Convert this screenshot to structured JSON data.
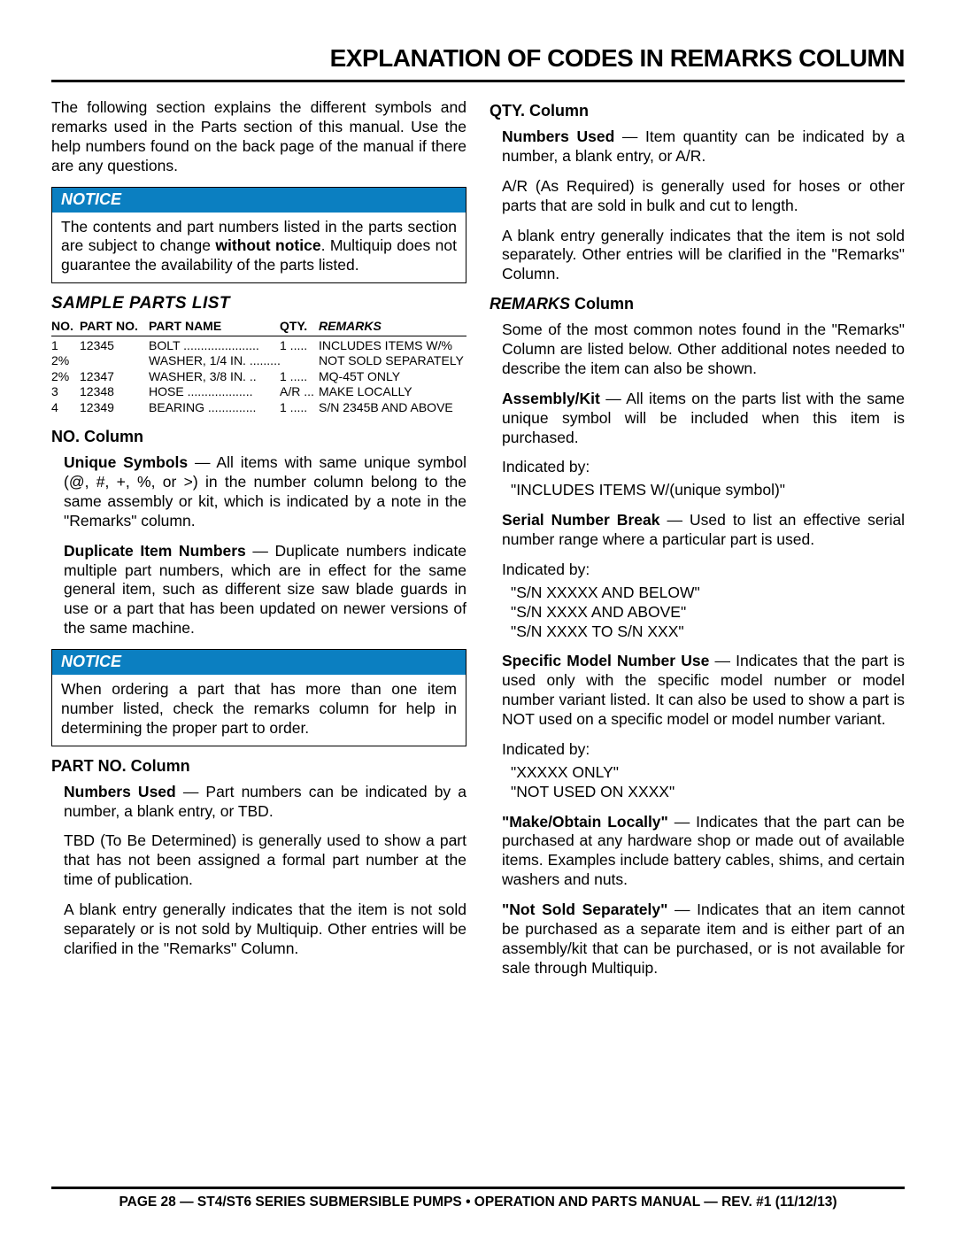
{
  "title": "EXPLANATION OF CODES IN REMARKS COLUMN",
  "intro": "The following section explains the different symbols and remarks used in the Parts section of this manual. Use the help numbers found on the back page of the manual if there are any questions.",
  "notice1_hdr": "NOTICE",
  "notice1_body_a": "The contents and part numbers listed in the parts section are subject to change ",
  "notice1_body_b": "without notice",
  "notice1_body_c": ". Multiquip does not guarantee the availability of the parts listed.",
  "sample_title": "SAMPLE PARTS LIST",
  "sample": {
    "h_no": "NO.",
    "h_pn": "PART NO.",
    "h_name": "PART NAME",
    "h_qty": "QTY.",
    "h_rem": "REMARKS",
    "rows": [
      {
        "no": "1",
        "pn": "12345",
        "name": "BOLT ......................",
        "qty": "1 .....",
        "rem": "INCLUDES ITEMS W/%"
      },
      {
        "no": "2%",
        "pn": "",
        "name": "WASHER, 1/4 IN. .........",
        "qty": "",
        "rem": "NOT SOLD SEPARATELY"
      },
      {
        "no": "2%",
        "pn": "12347",
        "name": "WASHER, 3/8 IN. ..",
        "qty": "1 .....",
        "rem": "MQ-45T ONLY"
      },
      {
        "no": "3",
        "pn": "12348",
        "name": "HOSE ...................",
        "qty": "A/R ...",
        "rem": "MAKE LOCALLY"
      },
      {
        "no": "4",
        "pn": "12349",
        "name": "BEARING ..............",
        "qty": "1 .....",
        "rem": "S/N 2345B AND ABOVE"
      }
    ]
  },
  "no_col_hdr": "NO. Column",
  "no_p1_a": "Unique Symbols",
  "no_p1_b": " — All items with same unique symbol (@, #, +, %, or >) in the number column belong to the same assembly or kit, which is indicated by a note in the \"Remarks\" column.",
  "no_p2_a": "Duplicate Item Numbers",
  "no_p2_b": " — Duplicate numbers indicate multiple part numbers, which are in effect for the same general item, such as different size saw blade guards in use or a part that has been updated on newer versions of the same machine.",
  "notice2_hdr": "NOTICE",
  "notice2_body": "When ordering a part that has more than one item number listed, check the remarks column for help in determining the proper part to order.",
  "pn_hdr": "PART NO. Column",
  "pn_p1_a": "Numbers Used",
  "pn_p1_b": " — Part numbers can be indicated by a number, a blank entry, or TBD.",
  "pn_p2": "TBD (To Be Determined) is generally used to show a part that has not been assigned a formal part number at the time of publication.",
  "pn_p3": "A blank entry generally indicates that the item is not sold separately or is not sold by Multiquip. Other entries will be clarified in the \"Remarks\" Column.",
  "qty_hdr": "QTY. Column",
  "qty_p1_a": "Numbers Used",
  "qty_p1_b": " — Item quantity can be indicated by a number, a blank entry, or A/R.",
  "qty_p2": "A/R (As Required) is generally used for hoses or other parts that are sold in bulk and cut to length.",
  "qty_p3": "A blank entry generally indicates that the item is not sold separately. Other entries will be clarified in the \"Remarks\" Column.",
  "rem_hdr_a": "REMARKS",
  "rem_hdr_b": " Column",
  "rem_p1": "Some of the most common notes found in the \"Remarks\" Column are listed below. Other additional notes needed to describe the item can also be shown.",
  "rem_asm_a": "Assembly/Kit",
  "rem_asm_b": " — All items on the parts list with the same unique symbol will be included when this item is purchased.",
  "ind_by": "Indicated by:",
  "rem_asm_q": "\"INCLUDES ITEMS W/(unique symbol)\"",
  "rem_sn_a": "Serial Number Break",
  "rem_sn_b": " — Used to list an effective serial number range where a particular part is used.",
  "rem_sn_q1": "\"S/N XXXXX AND BELOW\"",
  "rem_sn_q2": "\"S/N XXXX AND ABOVE\"",
  "rem_sn_q3": "\"S/N XXXX TO S/N XXX\"",
  "rem_mdl_a": "Specific Model Number Use",
  "rem_mdl_b": " — Indicates that the part is used only with the specific model number or model number variant listed. It can also be used to show a part is NOT used on a specific model or model number variant.",
  "rem_mdl_q1": "\"XXXXX ONLY\"",
  "rem_mdl_q2": "\"NOT USED ON XXXX\"",
  "rem_mk_a": "\"Make/Obtain Locally\"",
  "rem_mk_b": " — Indicates that the part can be purchased at any hardware shop or made out of available items. Examples include battery cables, shims, and certain washers and nuts.",
  "rem_ns_a": "\"Not Sold Separately\"",
  "rem_ns_b": " — Indicates that an item cannot be purchased as a separate item and is either part of an assembly/kit that can be purchased, or is not available for sale through Multiquip.",
  "footer": "PAGE 28 — ST4/ST6 SERIES SUBMERSIBLE PUMPS • OPERATION AND PARTS MANUAL — REV. #1 (11/12/13)"
}
